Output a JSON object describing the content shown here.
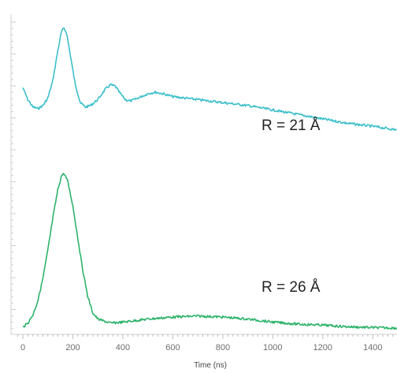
{
  "chart_data": {
    "type": "line",
    "title": "",
    "xlabel": "Time (ns)",
    "ylabel": "",
    "xlim": [
      -20,
      1520
    ],
    "x_ticks": [
      0,
      200,
      400,
      600,
      800,
      1000,
      1200,
      1400
    ],
    "x_tick_labels": [
      "0",
      "200",
      "400",
      "600",
      "800",
      "1000",
      "1200",
      "1400"
    ],
    "y_axis_labels_shown": false,
    "grid": false,
    "legend": "none",
    "series": [
      {
        "annotation": "R = 21 Å",
        "color": "#3bbfca",
        "points": [
          [
            0,
            0.7
          ],
          [
            20,
            0.62
          ],
          [
            40,
            0.57
          ],
          [
            60,
            0.56
          ],
          [
            80,
            0.58
          ],
          [
            100,
            0.63
          ],
          [
            120,
            0.75
          ],
          [
            140,
            0.95
          ],
          [
            155,
            1.08
          ],
          [
            165,
            1.1
          ],
          [
            175,
            1.07
          ],
          [
            190,
            0.92
          ],
          [
            210,
            0.72
          ],
          [
            230,
            0.6
          ],
          [
            250,
            0.57
          ],
          [
            270,
            0.58
          ],
          [
            300,
            0.62
          ],
          [
            330,
            0.69
          ],
          [
            350,
            0.72
          ],
          [
            370,
            0.71
          ],
          [
            390,
            0.66
          ],
          [
            410,
            0.62
          ],
          [
            430,
            0.61
          ],
          [
            460,
            0.63
          ],
          [
            500,
            0.66
          ],
          [
            530,
            0.67
          ],
          [
            560,
            0.66
          ],
          [
            600,
            0.64
          ],
          [
            700,
            0.62
          ],
          [
            800,
            0.6
          ],
          [
            900,
            0.58
          ],
          [
            1000,
            0.55
          ],
          [
            1100,
            0.52
          ],
          [
            1200,
            0.49
          ],
          [
            1300,
            0.46
          ],
          [
            1400,
            0.44
          ],
          [
            1480,
            0.42
          ],
          [
            1520,
            0.41
          ]
        ]
      },
      {
        "annotation": "R = 26 Å",
        "color": "#2db36a",
        "points": [
          [
            0,
            0.02
          ],
          [
            20,
            0.04
          ],
          [
            40,
            0.08
          ],
          [
            60,
            0.15
          ],
          [
            80,
            0.26
          ],
          [
            100,
            0.4
          ],
          [
            120,
            0.56
          ],
          [
            140,
            0.7
          ],
          [
            155,
            0.77
          ],
          [
            165,
            0.78
          ],
          [
            180,
            0.74
          ],
          [
            200,
            0.62
          ],
          [
            220,
            0.46
          ],
          [
            240,
            0.3
          ],
          [
            260,
            0.17
          ],
          [
            280,
            0.09
          ],
          [
            300,
            0.06
          ],
          [
            350,
            0.04
          ],
          [
            400,
            0.045
          ],
          [
            500,
            0.06
          ],
          [
            600,
            0.07
          ],
          [
            700,
            0.075
          ],
          [
            800,
            0.07
          ],
          [
            900,
            0.06
          ],
          [
            1000,
            0.045
          ],
          [
            1100,
            0.035
          ],
          [
            1200,
            0.03
          ],
          [
            1300,
            0.022
          ],
          [
            1400,
            0.018
          ],
          [
            1480,
            0.016
          ],
          [
            1520,
            0.015
          ]
        ]
      }
    ]
  }
}
